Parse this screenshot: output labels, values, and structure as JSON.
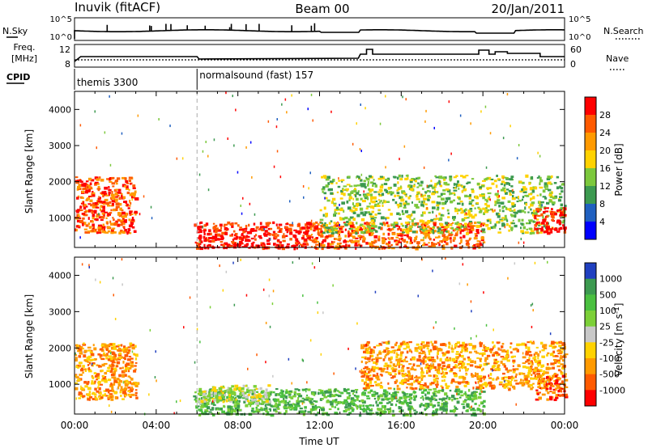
{
  "header": {
    "station": "Inuvik (fitACF)",
    "beam": "Beam 00",
    "date": "20/Jan/2011"
  },
  "panels_small": {
    "nsky_label": "N.Sky",
    "nsearch_label": "N.Search",
    "freq_label_top": "Freq.",
    "freq_label_bottom": "[MHz]",
    "nave_label": "Nave",
    "cpid_label": "CPID",
    "nsky_ticks": [
      "10^5",
      "10^0"
    ],
    "nsearch_ticks": [
      "10^5",
      "10^0"
    ],
    "freq_ticks": [
      "12",
      "8"
    ],
    "nave_ticks": [
      "60",
      "0"
    ]
  },
  "cpid_segments": [
    {
      "start_hour": 0,
      "end_hour": 6.0,
      "label": "themis 3300"
    },
    {
      "start_hour": 6.0,
      "end_hour": 24,
      "label": "normalsound (fast) 157"
    }
  ],
  "chart_data": [
    {
      "type": "heatmap",
      "name": "power",
      "ylabel": "Slant Range [km]",
      "xlabel": "",
      "xlim": [
        0,
        24
      ],
      "ylim": [
        180,
        4500
      ],
      "y_ticks": [
        1000,
        2000,
        3000,
        4000
      ],
      "colorbar": {
        "label": "Power [dB]",
        "ticks": [
          "28",
          "24",
          "20",
          "16",
          "12",
          "8",
          "4"
        ],
        "colors": [
          "#ff0000",
          "#ff5a00",
          "#ff9a00",
          "#ffd200",
          "#7cc83c",
          "#3c9a50",
          "#2060c0",
          "#0000ff"
        ]
      },
      "echo_regions": [
        {
          "t0": 0.0,
          "t1": 3.0,
          "r0": 600,
          "r1": 2150,
          "dominant_color": "#ff5a00"
        },
        {
          "t0": 5.8,
          "t1": 11.5,
          "r0": 180,
          "r1": 900,
          "dominant_color": "#ff0000"
        },
        {
          "t0": 11.5,
          "t1": 20.0,
          "r0": 180,
          "r1": 900,
          "dominant_color": "#ff5a00"
        },
        {
          "t0": 12.0,
          "t1": 24.0,
          "r0": 600,
          "r1": 2200,
          "dominant_color": "#7cc83c"
        },
        {
          "t0": 22.5,
          "t1": 24.0,
          "r0": 600,
          "r1": 1300,
          "dominant_color": "#ff0000"
        }
      ]
    },
    {
      "type": "heatmap",
      "name": "velocity",
      "ylabel": "Slant Range [km]",
      "xlabel": "Time UT",
      "xlim": [
        0,
        24
      ],
      "ylim": [
        180,
        4500
      ],
      "x_ticks": [
        "00:00",
        "04:00",
        "08:00",
        "12:00",
        "16:00",
        "20:00",
        "00:00"
      ],
      "y_ticks": [
        1000,
        2000,
        3000,
        4000
      ],
      "colorbar": {
        "label": "Velocity [m s^-1]",
        "ticks": [
          "1000",
          "500",
          "100",
          "25",
          "-25",
          "-100",
          "-500",
          "-1000"
        ],
        "colors": [
          "#2040c0",
          "#3c9a50",
          "#4ac040",
          "#7cd038",
          "#c8c8c8",
          "#ffd200",
          "#ff9a00",
          "#ff5a00",
          "#ff0000"
        ]
      },
      "echo_regions": [
        {
          "t0": 0.0,
          "t1": 3.0,
          "r0": 600,
          "r1": 2150,
          "dominant_color": "#ff9a00"
        },
        {
          "t0": 5.8,
          "t1": 20.0,
          "r0": 180,
          "r1": 900,
          "dominant_color": "#4ac040"
        },
        {
          "t0": 6.0,
          "t1": 9.5,
          "r0": 500,
          "r1": 1000,
          "dominant_color": "#c8c8c8"
        },
        {
          "t0": 14.0,
          "t1": 24.0,
          "r0": 900,
          "r1": 2200,
          "dominant_color": "#ff9a00"
        },
        {
          "t0": 22.5,
          "t1": 24.0,
          "r0": 600,
          "r1": 1300,
          "dominant_color": "#ff5a00"
        }
      ]
    }
  ]
}
